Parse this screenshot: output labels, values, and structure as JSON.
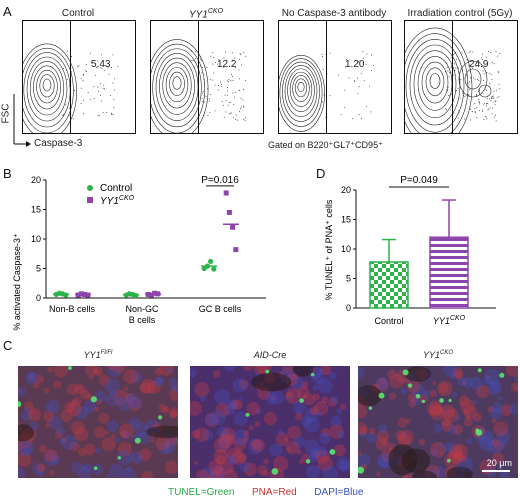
{
  "panel_a": {
    "label": "A",
    "plots": [
      {
        "title": "Control",
        "title_italic": false,
        "gate_value": "5.43"
      },
      {
        "title": "YY1",
        "title_sup": "CKO",
        "title_italic": true,
        "gate_value": "12.2"
      },
      {
        "title": "No Caspase-3 antibody",
        "title_italic": false,
        "gate_value": "1.20"
      },
      {
        "title": "Irradiation control (5Gy)",
        "title_italic": false,
        "gate_value": "24.9"
      }
    ],
    "y_axis_label": "FSC",
    "x_axis_label": "Caspase-3",
    "gating_note": "Gated on B220⁺GL7⁺CD95⁺"
  },
  "panel_b": {
    "label": "B",
    "chart_data": {
      "type": "scatter",
      "ylabel": "% activated Caspase-3⁺",
      "ylim": [
        0,
        20
      ],
      "yticks": [
        "0",
        "5",
        "10",
        "15",
        "20"
      ],
      "categories": [
        "Non-B cells",
        "Non-GC B cells",
        "GC B cells"
      ],
      "category_lines": [
        [
          "Non-B cells"
        ],
        [
          "Non-GC",
          "B cells"
        ],
        [
          "GC B cells"
        ]
      ],
      "series": [
        {
          "name": "Control",
          "color": "#2db34a",
          "marker": "circle",
          "values": [
            [
              0.6,
              0.8,
              0.7,
              0.5
            ],
            [
              0.5,
              0.7,
              0.6,
              0.4
            ],
            [
              5.0,
              5.4,
              6.2,
              4.9
            ]
          ],
          "means": [
            0.65,
            0.55,
            5.4
          ]
        },
        {
          "name": "YY1",
          "name_sup": "CKO",
          "color": "#8e44ad",
          "marker": "square",
          "values": [
            [
              0.5,
              0.7,
              0.6,
              0.5
            ],
            [
              0.6,
              0.5,
              0.8,
              0.7
            ],
            [
              17.8,
              14.5,
              12.0,
              8.2
            ]
          ],
          "means": [
            0.6,
            0.65,
            12.5
          ]
        }
      ],
      "annotation": {
        "text": "P=0.016",
        "category_index": 2
      }
    }
  },
  "panel_d": {
    "label": "D",
    "chart_data": {
      "type": "bar",
      "ylabel": "% TUNEL⁺ of PNA⁺ cells",
      "ylim": [
        0,
        20
      ],
      "yticks": [
        "0",
        "5",
        "10",
        "15",
        "20"
      ],
      "categories": [
        "Control",
        "YY1"
      ],
      "category_sup": [
        "",
        "CKO"
      ],
      "values": [
        7.8,
        12.0
      ],
      "errors": [
        3.8,
        6.3
      ],
      "colors": [
        "#2db34a",
        "#8e44ad"
      ],
      "annotation": {
        "text": "P=0.049"
      }
    }
  },
  "panel_c": {
    "label": "C",
    "images": [
      {
        "title": "YY1",
        "title_sup": "Fl/Fl"
      },
      {
        "title": "AID-Cre",
        "title_sup": ""
      },
      {
        "title": "YY1",
        "title_sup": "CKO"
      }
    ],
    "scale_bar": "20 μm",
    "legend": [
      {
        "text": "TUNEL=Green",
        "color": "#2aa84a"
      },
      {
        "text": "PNA=Red",
        "color": "#d03030"
      },
      {
        "text": "DAPI=Blue",
        "color": "#3a4fb8"
      }
    ]
  }
}
